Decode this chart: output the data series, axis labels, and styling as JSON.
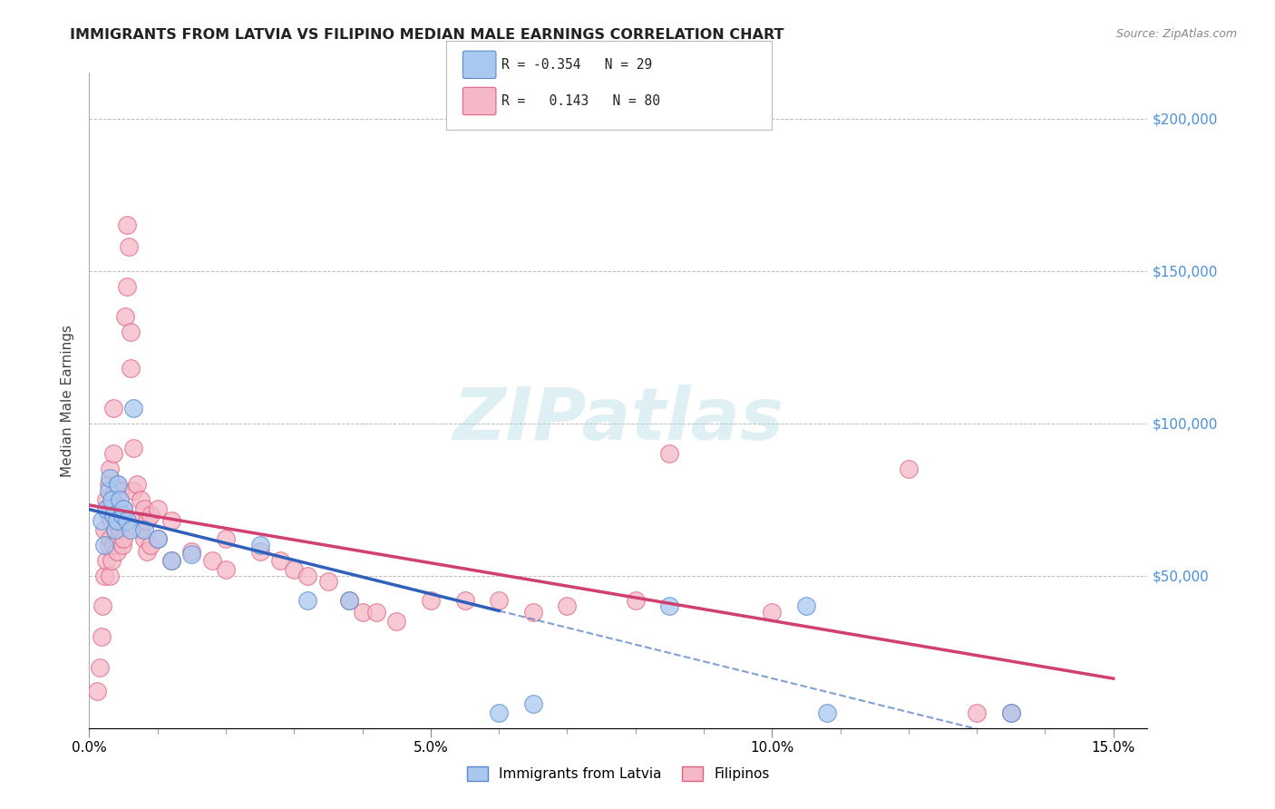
{
  "title": "IMMIGRANTS FROM LATVIA VS FILIPINO MEDIAN MALE EARNINGS CORRELATION CHART",
  "source": "Source: ZipAtlas.com",
  "ylabel": "Median Male Earnings",
  "watermark": "ZIPatlas",
  "blue_R": -0.354,
  "blue_N": 29,
  "pink_R": 0.143,
  "pink_N": 80,
  "blue_color": "#A8C8F0",
  "pink_color": "#F5B8C8",
  "blue_edge_color": "#5588CC",
  "pink_edge_color": "#E06080",
  "blue_line_color": "#3060BB",
  "pink_line_color": "#D04070",
  "blue_points": [
    [
      0.18,
      68000
    ],
    [
      0.22,
      60000
    ],
    [
      0.25,
      72000
    ],
    [
      0.28,
      78000
    ],
    [
      0.3,
      82000
    ],
    [
      0.32,
      75000
    ],
    [
      0.35,
      70000
    ],
    [
      0.38,
      65000
    ],
    [
      0.4,
      68000
    ],
    [
      0.42,
      80000
    ],
    [
      0.45,
      75000
    ],
    [
      0.48,
      70000
    ],
    [
      0.5,
      72000
    ],
    [
      0.55,
      68000
    ],
    [
      0.6,
      65000
    ],
    [
      0.65,
      105000
    ],
    [
      0.8,
      65000
    ],
    [
      1.0,
      62000
    ],
    [
      1.2,
      55000
    ],
    [
      1.5,
      57000
    ],
    [
      2.5,
      60000
    ],
    [
      3.2,
      42000
    ],
    [
      3.8,
      42000
    ],
    [
      6.0,
      5000
    ],
    [
      6.5,
      8000
    ],
    [
      8.5,
      40000
    ],
    [
      10.5,
      40000
    ],
    [
      10.8,
      5000
    ],
    [
      13.5,
      5000
    ]
  ],
  "pink_points": [
    [
      0.12,
      12000
    ],
    [
      0.15,
      20000
    ],
    [
      0.18,
      30000
    ],
    [
      0.2,
      40000
    ],
    [
      0.22,
      50000
    ],
    [
      0.22,
      65000
    ],
    [
      0.25,
      55000
    ],
    [
      0.25,
      75000
    ],
    [
      0.28,
      60000
    ],
    [
      0.28,
      70000
    ],
    [
      0.28,
      80000
    ],
    [
      0.3,
      50000
    ],
    [
      0.3,
      62000
    ],
    [
      0.3,
      72000
    ],
    [
      0.3,
      85000
    ],
    [
      0.32,
      55000
    ],
    [
      0.32,
      68000
    ],
    [
      0.35,
      60000
    ],
    [
      0.35,
      75000
    ],
    [
      0.35,
      90000
    ],
    [
      0.35,
      105000
    ],
    [
      0.38,
      65000
    ],
    [
      0.38,
      78000
    ],
    [
      0.4,
      58000
    ],
    [
      0.4,
      68000
    ],
    [
      0.4,
      80000
    ],
    [
      0.42,
      62000
    ],
    [
      0.42,
      72000
    ],
    [
      0.45,
      65000
    ],
    [
      0.45,
      78000
    ],
    [
      0.48,
      60000
    ],
    [
      0.48,
      70000
    ],
    [
      0.5,
      62000
    ],
    [
      0.5,
      72000
    ],
    [
      0.52,
      135000
    ],
    [
      0.55,
      145000
    ],
    [
      0.55,
      165000
    ],
    [
      0.58,
      158000
    ],
    [
      0.6,
      130000
    ],
    [
      0.6,
      118000
    ],
    [
      0.65,
      78000
    ],
    [
      0.65,
      92000
    ],
    [
      0.7,
      68000
    ],
    [
      0.7,
      80000
    ],
    [
      0.75,
      65000
    ],
    [
      0.75,
      75000
    ],
    [
      0.8,
      62000
    ],
    [
      0.8,
      72000
    ],
    [
      0.85,
      58000
    ],
    [
      0.85,
      68000
    ],
    [
      0.9,
      60000
    ],
    [
      0.9,
      70000
    ],
    [
      1.0,
      62000
    ],
    [
      1.0,
      72000
    ],
    [
      1.2,
      55000
    ],
    [
      1.2,
      68000
    ],
    [
      1.5,
      58000
    ],
    [
      1.8,
      55000
    ],
    [
      2.0,
      52000
    ],
    [
      2.0,
      62000
    ],
    [
      2.5,
      58000
    ],
    [
      2.8,
      55000
    ],
    [
      3.0,
      52000
    ],
    [
      3.2,
      50000
    ],
    [
      3.5,
      48000
    ],
    [
      3.8,
      42000
    ],
    [
      4.0,
      38000
    ],
    [
      4.2,
      38000
    ],
    [
      4.5,
      35000
    ],
    [
      5.0,
      42000
    ],
    [
      5.5,
      42000
    ],
    [
      6.0,
      42000
    ],
    [
      6.5,
      38000
    ],
    [
      7.0,
      40000
    ],
    [
      8.0,
      42000
    ],
    [
      8.5,
      90000
    ],
    [
      10.0,
      38000
    ],
    [
      12.0,
      85000
    ],
    [
      13.0,
      5000
    ],
    [
      13.5,
      5000
    ]
  ],
  "ylabel_ticks": [
    0,
    50000,
    100000,
    150000,
    200000
  ],
  "ylabel_labels": [
    "",
    "$50,000",
    "$100,000",
    "$150,000",
    "$200,000"
  ],
  "xlim": [
    0,
    15.5
  ],
  "ylim": [
    0,
    215000
  ],
  "xticks": [
    0,
    5,
    10,
    15
  ],
  "xtick_labels": [
    "0.0%",
    "5.0%",
    "10.0%",
    "15.0%"
  ],
  "background_color": "#FFFFFF",
  "grid_color": "#BBBBBB",
  "title_color": "#222222",
  "source_color": "#888888",
  "watermark_color": "#ADD8E6",
  "right_tick_color": "#4A90D9"
}
